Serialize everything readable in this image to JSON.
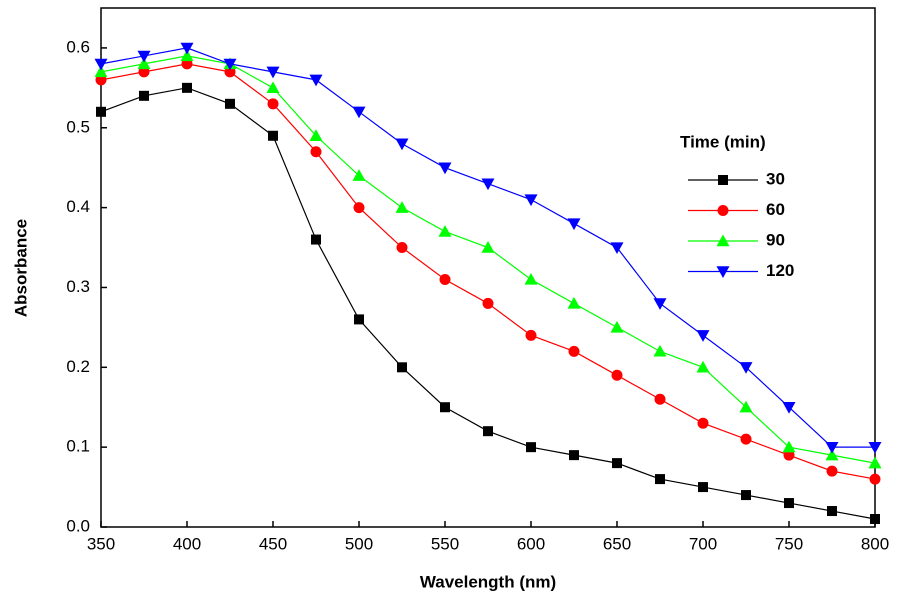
{
  "chart_data": {
    "type": "line",
    "x_label": "Wavelength (nm)",
    "y_label": "Absorbance",
    "legend_title": "Time (min)",
    "x": [
      350,
      375,
      400,
      425,
      450,
      475,
      500,
      525,
      550,
      575,
      600,
      625,
      650,
      675,
      700,
      725,
      750,
      775,
      800
    ],
    "series": [
      {
        "name": "30",
        "color": "#000000",
        "marker": "square",
        "values": [
          0.52,
          0.54,
          0.55,
          0.53,
          0.49,
          0.36,
          0.26,
          0.2,
          0.15,
          0.12,
          0.1,
          0.09,
          0.08,
          0.06,
          0.05,
          0.04,
          0.03,
          0.02,
          0.01
        ]
      },
      {
        "name": "60",
        "color": "#ff0000",
        "marker": "circle",
        "values": [
          0.56,
          0.57,
          0.58,
          0.57,
          0.53,
          0.47,
          0.4,
          0.35,
          0.31,
          0.28,
          0.24,
          0.22,
          0.19,
          0.16,
          0.13,
          0.11,
          0.09,
          0.07,
          0.06
        ]
      },
      {
        "name": "90",
        "color": "#00ff00",
        "marker": "triangle-up",
        "values": [
          0.57,
          0.58,
          0.59,
          0.58,
          0.55,
          0.49,
          0.44,
          0.4,
          0.37,
          0.35,
          0.31,
          0.28,
          0.25,
          0.22,
          0.2,
          0.15,
          0.1,
          0.09,
          0.08
        ]
      },
      {
        "name": "120",
        "color": "#0000ff",
        "marker": "triangle-down",
        "values": [
          0.58,
          0.59,
          0.6,
          0.58,
          0.57,
          0.56,
          0.52,
          0.48,
          0.45,
          0.43,
          0.41,
          0.38,
          0.35,
          0.28,
          0.24,
          0.2,
          0.15,
          0.1,
          0.1
        ]
      }
    ],
    "xlim": [
      350,
      800
    ],
    "xticks": [
      350,
      400,
      450,
      500,
      550,
      600,
      650,
      700,
      750,
      800
    ],
    "ylim": [
      0,
      0.65
    ],
    "yticks": [
      {
        "value": 0,
        "label": "0.0"
      },
      0.1,
      0.2,
      0.3,
      0.4,
      0.5,
      0.6
    ],
    "grid": false,
    "legend_position": "right"
  }
}
